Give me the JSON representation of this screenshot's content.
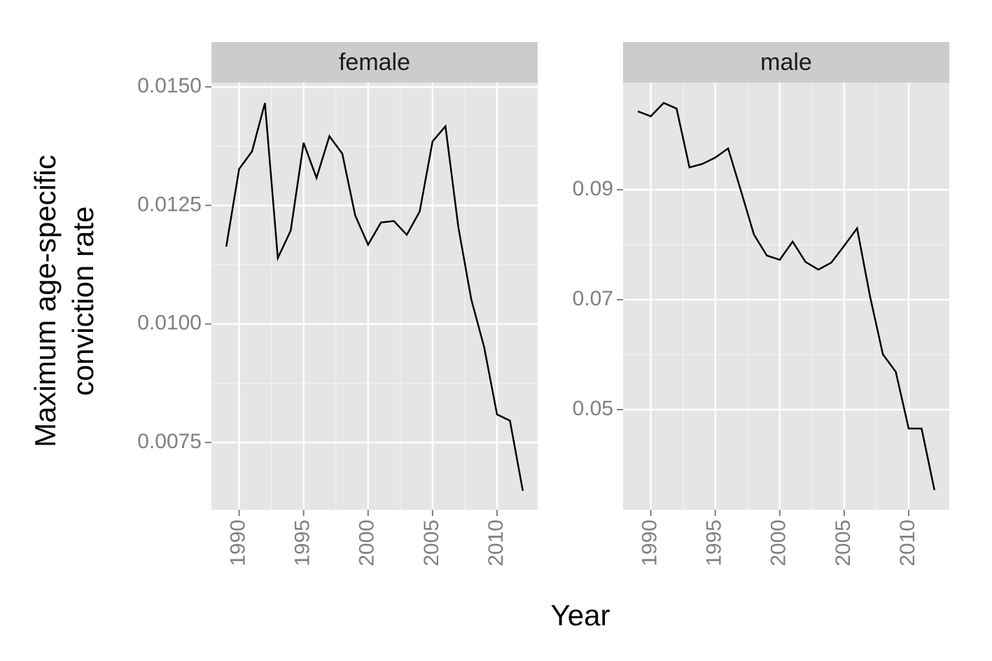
{
  "xlabel": "Year",
  "ylabel": [
    "Maximum age-specific",
    "conviction rate"
  ],
  "chart_data": [
    {
      "type": "line",
      "title": "female",
      "x": [
        1989,
        1990,
        1991,
        1992,
        1993,
        1994,
        1995,
        1996,
        1997,
        1998,
        1999,
        2000,
        2001,
        2002,
        2003,
        2004,
        2005,
        2006,
        2007,
        2008,
        2009,
        2010,
        2011,
        2012
      ],
      "series": [
        {
          "color": "#000000",
          "values": [
            0.01163,
            0.01327,
            0.01364,
            0.01466,
            0.01139,
            0.01197,
            0.01382,
            0.01308,
            0.01396,
            0.01359,
            0.01229,
            0.01167,
            0.01214,
            0.01217,
            0.01188,
            0.01237,
            0.01385,
            0.01417,
            0.01204,
            0.01052,
            0.00951,
            0.00809,
            0.00796,
            0.00648
          ]
        }
      ],
      "xlim": [
        1987.85,
        2013.15
      ],
      "xticks": [
        1990,
        1995,
        2000,
        2005,
        2010
      ],
      "ylim": [
        0.00608,
        0.01509
      ],
      "yticks": [
        {
          "value": 0.0075,
          "label": "0.0075"
        },
        {
          "value": 0.01,
          "label": "0.0100"
        },
        {
          "value": 0.0125,
          "label": "0.0125"
        },
        {
          "value": 0.015,
          "label": "0.0150"
        }
      ],
      "grid": true
    },
    {
      "type": "line",
      "title": "male",
      "x": [
        1989,
        1990,
        1991,
        1992,
        1993,
        1994,
        1995,
        1996,
        1997,
        1998,
        1999,
        2000,
        2001,
        2002,
        2003,
        2004,
        2005,
        2006,
        2007,
        2008,
        2009,
        2010,
        2011,
        2012
      ],
      "series": [
        {
          "color": "#000000",
          "values": [
            0.10427,
            0.10338,
            0.1058,
            0.10478,
            0.09408,
            0.09471,
            0.09586,
            0.09752,
            0.08975,
            0.08185,
            0.07803,
            0.07726,
            0.08057,
            0.07688,
            0.07548,
            0.07675,
            0.07981,
            0.08299,
            0.07064,
            0.06006,
            0.05688,
            0.04656,
            0.04656,
            0.03535
          ]
        }
      ],
      "xlim": [
        1987.85,
        2013.15
      ],
      "xticks": [
        1990,
        1995,
        2000,
        2005,
        2010
      ],
      "ylim": [
        0.03178,
        0.1095
      ],
      "yticks": [
        0.05,
        0.07,
        0.09
      ],
      "grid": true
    }
  ]
}
